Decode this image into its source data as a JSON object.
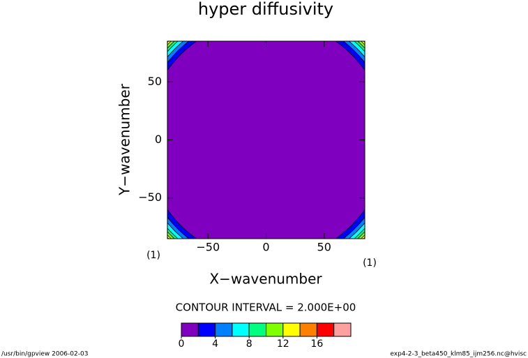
{
  "chart_data": {
    "type": "contour",
    "title": "hyper diffusivity",
    "x_label": "X−wavenumber",
    "y_label": "Y−wavenumber",
    "x_unit": "(1)",
    "y_unit": "(1)",
    "xlim": [
      -85,
      85
    ],
    "ylim": [
      -85,
      85
    ],
    "xticks": [
      {
        "value": -50,
        "label": "−50"
      },
      0,
      50
    ],
    "yticks": [
      {
        "value": -50,
        "label": "−50"
      },
      0,
      50
    ],
    "contours": {
      "levels": [
        2,
        4,
        6,
        8,
        10,
        12,
        14,
        16
      ],
      "radii": [
        104,
        108,
        111,
        114,
        116,
        118,
        119.5,
        121
      ]
    },
    "contour_interval_text": "CONTOUR INTERVAL = 2.000E+00",
    "colorbar": {
      "levels": [
        0,
        2,
        4,
        6,
        8,
        10,
        12,
        14,
        16,
        18,
        20
      ],
      "colors": [
        "#8000c0",
        "#0000ff",
        "#0080ff",
        "#00ffff",
        "#00ff80",
        "#80ff00",
        "#ffff00",
        "#ff8000",
        "#ff0000",
        "#ffa0a0"
      ],
      "ticks": [
        0,
        4,
        8,
        12,
        16
      ]
    },
    "footer_left": "/usr/bin/gpview  2006-02-03",
    "footer_right": "exp4-2-3_beta450_klm85_ijm256.nc@hvisc"
  }
}
